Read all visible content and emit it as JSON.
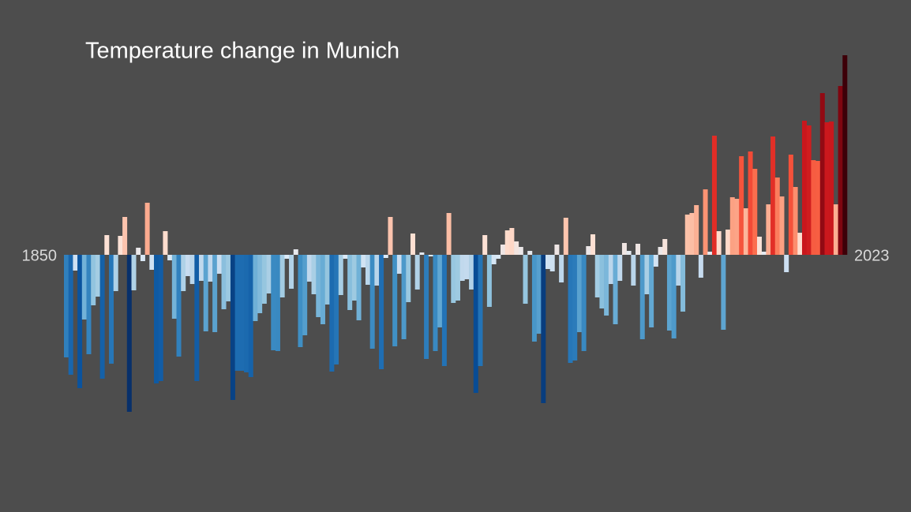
{
  "chart_data": {
    "type": "bar",
    "title": "Temperature change in Munich",
    "categories": [
      "1850",
      null,
      null,
      null,
      null,
      null,
      null,
      null,
      null,
      null,
      null,
      null,
      null,
      null,
      null,
      null,
      null,
      null,
      null,
      null,
      null,
      null,
      null,
      null,
      null,
      null,
      null,
      null,
      null,
      null,
      null,
      null,
      null,
      null,
      null,
      null,
      null,
      null,
      null,
      null,
      null,
      null,
      null,
      null,
      null,
      null,
      null,
      null,
      null,
      null,
      null,
      null,
      null,
      null,
      null,
      null,
      null,
      null,
      null,
      null,
      null,
      null,
      null,
      null,
      null,
      null,
      null,
      null,
      null,
      null,
      null,
      null,
      null,
      null,
      null,
      null,
      null,
      null,
      null,
      null,
      null,
      null,
      null,
      null,
      null,
      null,
      null,
      null,
      null,
      null,
      null,
      null,
      null,
      null,
      null,
      null,
      null,
      null,
      null,
      null,
      null,
      null,
      null,
      null,
      null,
      null,
      null,
      null,
      null,
      null,
      null,
      null,
      null,
      null,
      null,
      null,
      null,
      null,
      null,
      null,
      null,
      null,
      null,
      null,
      null,
      null,
      null,
      null,
      null,
      null,
      null,
      null,
      null,
      null,
      null,
      null,
      null,
      null,
      null,
      null,
      null,
      null,
      null,
      null,
      null,
      null,
      null,
      null,
      null,
      null,
      null,
      null,
      null,
      null,
      null,
      null,
      null,
      null,
      null,
      null,
      null,
      null,
      null,
      null,
      null,
      null,
      null,
      null,
      null,
      null,
      null,
      null,
      null,
      "2023"
    ],
    "values": [
      -1.3,
      -1.52,
      -0.2,
      -1.69,
      -0.82,
      -1.26,
      -0.64,
      -0.53,
      -1.57,
      0.25,
      -1.38,
      -0.46,
      0.24,
      0.48,
      -1.99,
      -0.45,
      0.09,
      -0.08,
      0.66,
      -0.19,
      -1.63,
      -1.6,
      0.3,
      -0.07,
      -0.81,
      -1.29,
      -0.46,
      -0.27,
      -0.37,
      -1.6,
      -0.33,
      -0.97,
      -0.34,
      -0.98,
      -0.24,
      -0.69,
      -0.59,
      -1.84,
      -1.47,
      -1.47,
      -1.49,
      -1.55,
      -0.84,
      -0.74,
      -0.62,
      -0.49,
      -1.21,
      -1.22,
      -0.54,
      -0.05,
      -0.43,
      0.07,
      -1.17,
      -1.02,
      -0.34,
      -0.5,
      -0.79,
      -0.88,
      -0.63,
      -1.48,
      -1.39,
      -0.51,
      -0.05,
      -0.7,
      -0.58,
      -0.83,
      -0.16,
      -0.38,
      -1.19,
      -0.39,
      -1.45,
      -0.04,
      0.48,
      -1.16,
      -0.24,
      -1.07,
      -0.6,
      0.27,
      -0.44,
      0.03,
      -1.32,
      -0.02,
      -1.22,
      -0.92,
      -1.41,
      0.53,
      -0.61,
      -0.58,
      -0.33,
      -0.31,
      -0.44,
      -1.75,
      -1.41,
      0.25,
      -0.66,
      -0.12,
      -0.05,
      0.13,
      0.31,
      0.34,
      0.17,
      0.1,
      -0.62,
      0.05,
      -1.1,
      -1.0,
      -1.88,
      -0.18,
      -0.21,
      0.13,
      -0.35,
      0.47,
      -1.37,
      -1.34,
      -0.98,
      -1.22,
      0.11,
      0.26,
      -0.54,
      -0.68,
      -0.77,
      -0.37,
      -0.88,
      -0.33,
      0.15,
      0.05,
      -0.39,
      0.14,
      -1.07,
      -0.5,
      -0.92,
      -0.15,
      0.1,
      0.2,
      -0.96,
      -1.06,
      -0.39,
      -0.72,
      0.51,
      0.53,
      0.63,
      -0.29,
      0.83,
      0.04,
      1.51,
      0.3,
      -0.95,
      0.32,
      0.73,
      0.71,
      1.25,
      0.59,
      1.31,
      1.09,
      0.23,
      0.04,
      0.64,
      1.5,
      0.98,
      0.74,
      -0.22,
      1.27,
      0.86,
      0.28,
      1.7,
      1.64,
      1.2,
      1.19,
      2.05,
      1.68,
      1.69,
      0.64,
      2.14,
      2.53
    ],
    "ylim": [
      -3.26,
      3.23
    ],
    "colormap": [
      "#08306b",
      "#08519c",
      "#2171b5",
      "#4292c6",
      "#6baed6",
      "#9ecae1",
      "#c6dbef",
      "#deebf7",
      "#fee0d2",
      "#fcbba1",
      "#fc9272",
      "#fb6a4a",
      "#ef3b2c",
      "#cb181d",
      "#a50f15",
      "#67000d",
      "#3d0008"
    ]
  }
}
